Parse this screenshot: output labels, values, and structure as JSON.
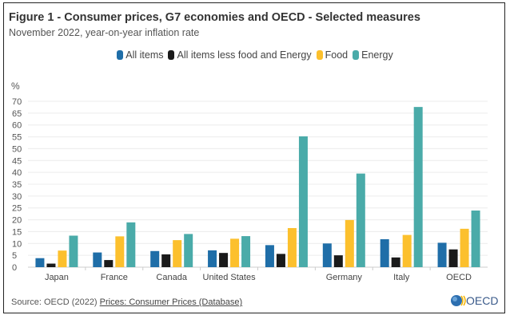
{
  "title": "Figure 1 - Consumer prices, G7 economies and OECD - Selected measures",
  "subtitle": "November 2022, year-on-year inflation rate",
  "source": {
    "prefix": "Source: OECD (2022) ",
    "link": "Prices: Consumer Prices (Database)"
  },
  "logo_text": "OECD",
  "chart_data": {
    "type": "bar",
    "title": "Figure 1 - Consumer prices, G7 economies and OECD - Selected measures",
    "subtitle": "November 2022, year-on-year inflation rate",
    "ylabel": "%",
    "xlabel": "",
    "ylim": [
      0,
      70
    ],
    "yticks": [
      0,
      5,
      10,
      15,
      20,
      25,
      30,
      35,
      40,
      45,
      50,
      55,
      60,
      65,
      70
    ],
    "grid": true,
    "legend": "top-center",
    "categories": [
      "Japan",
      "France",
      "Canada",
      "United States",
      "",
      "Germany",
      "Italy",
      "OECD"
    ],
    "series": [
      {
        "name": "All items",
        "color": "#1f6ea8",
        "values": [
          3.8,
          6.2,
          6.8,
          7.1,
          9.3,
          10.0,
          11.8,
          10.3
        ]
      },
      {
        "name": "All items less food and Energy",
        "color": "#1a1a1a",
        "values": [
          1.5,
          3.0,
          5.4,
          6.0,
          5.6,
          5.0,
          4.1,
          7.5
        ]
      },
      {
        "name": "Food",
        "color": "#fcc02d",
        "values": [
          7.0,
          13.0,
          11.4,
          12.0,
          16.5,
          19.9,
          13.6,
          16.2
        ]
      },
      {
        "name": "Energy",
        "color": "#4aaba9",
        "values": [
          13.3,
          18.9,
          14.0,
          13.1,
          55.2,
          39.5,
          67.6,
          23.9
        ]
      }
    ]
  }
}
